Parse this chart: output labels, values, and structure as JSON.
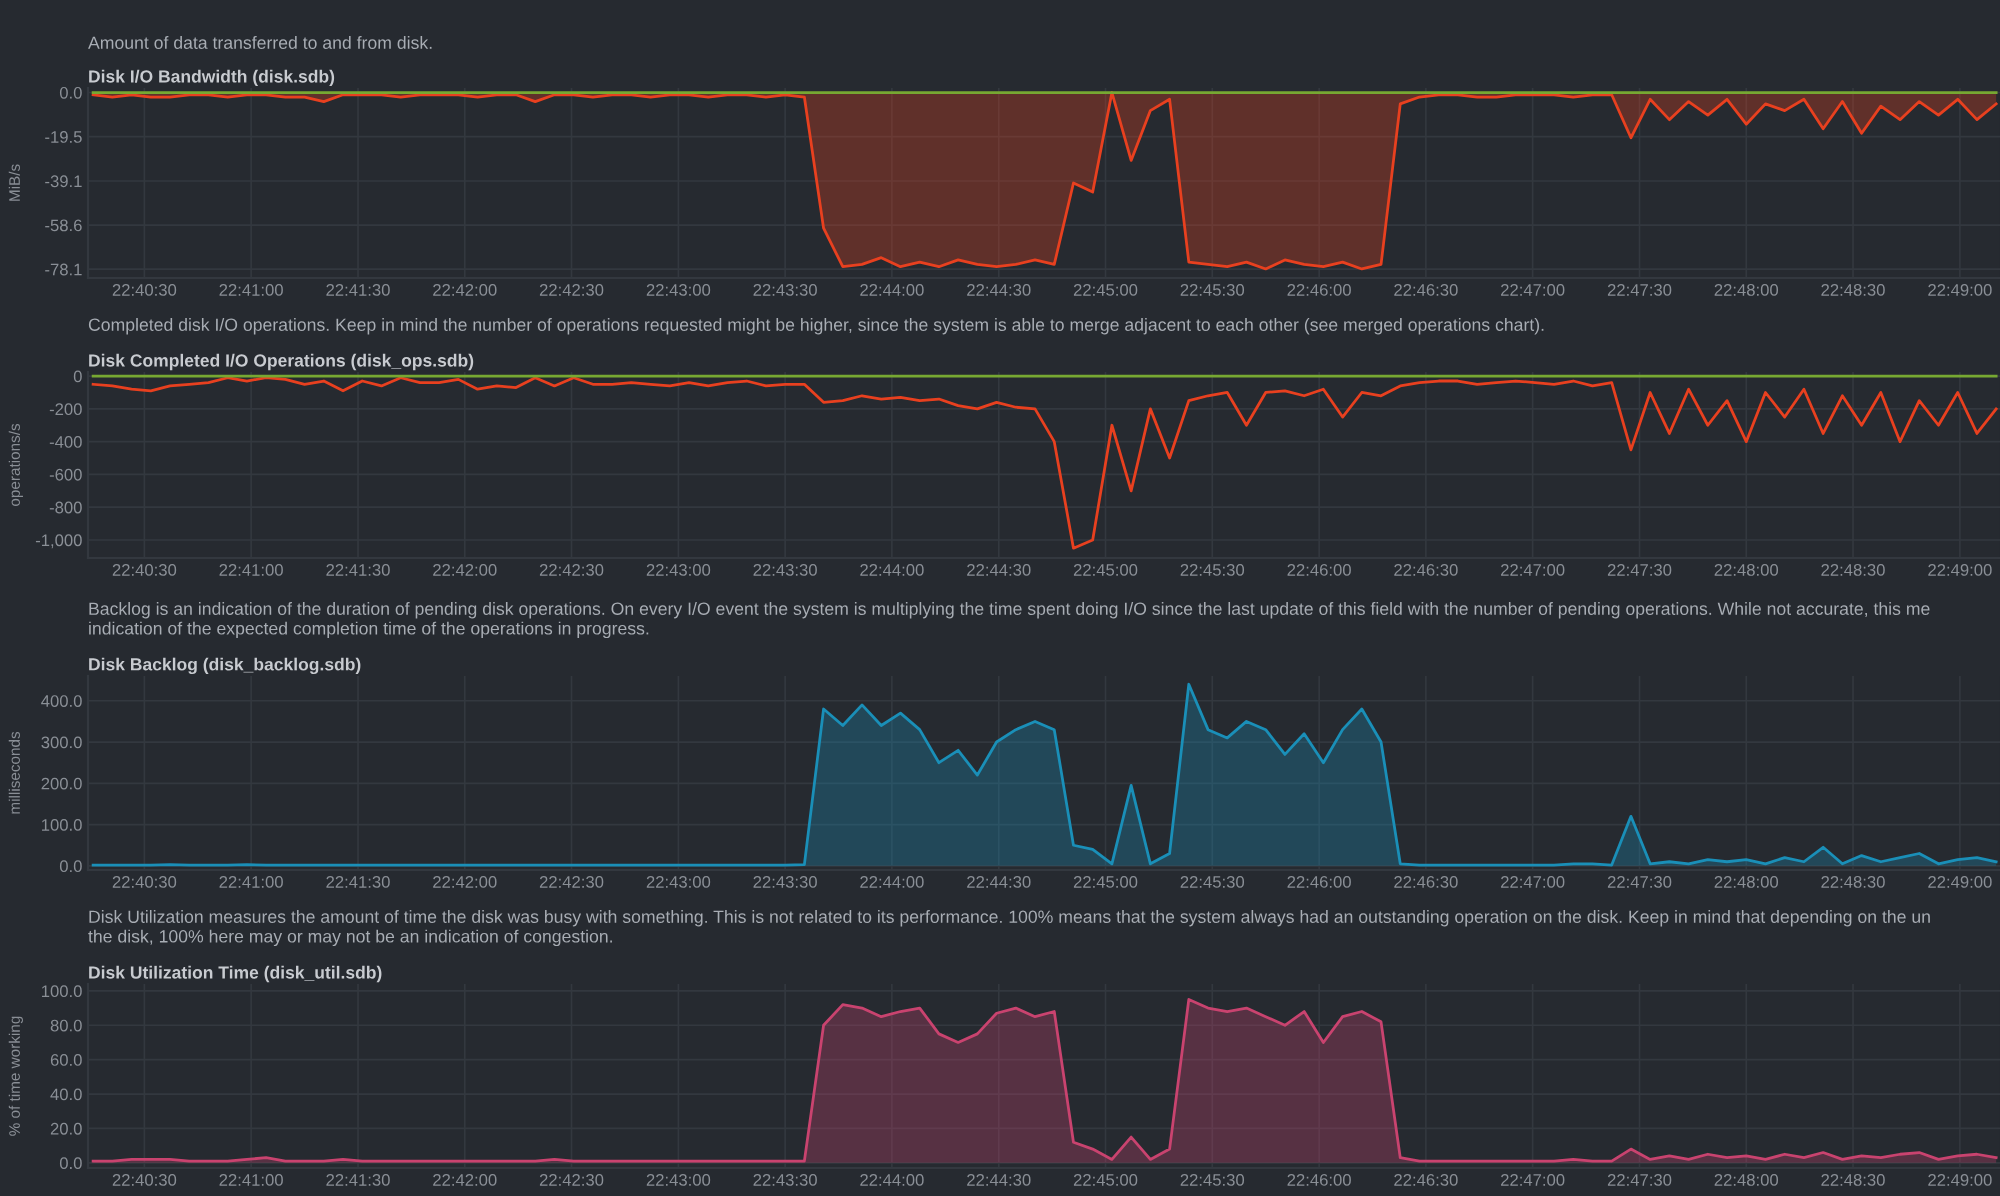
{
  "chart_data": [
    {
      "type": "area",
      "subtitle": "Amount of data transferred to and from disk.",
      "title": "Disk I/O Bandwidth (disk.sdb)",
      "ylabel": "MiB/s",
      "grid": true,
      "x": [
        22.671,
        22.6725,
        22.674,
        22.6755,
        22.677,
        22.6785,
        22.68,
        22.6815,
        22.683,
        22.6845,
        22.686,
        22.6875,
        22.689,
        22.6905,
        22.692,
        22.6935,
        22.695,
        22.6965,
        22.698,
        22.6995,
        22.701,
        22.7025,
        22.704,
        22.7055,
        22.707,
        22.7085,
        22.71,
        22.7115,
        22.713,
        22.7145,
        22.716,
        22.7175,
        22.719,
        22.7205,
        22.722,
        22.7235,
        22.725,
        22.7265,
        22.728,
        22.7295,
        22.731,
        22.7325,
        22.734,
        22.7355,
        22.737,
        22.7385,
        22.74,
        22.7415,
        22.743,
        22.7445,
        22.746,
        22.7475,
        22.749,
        22.7505,
        22.752,
        22.7535,
        22.755,
        22.7565,
        22.758,
        22.7595,
        22.761,
        22.7625,
        22.764,
        22.7655,
        22.767,
        22.7685,
        22.77,
        22.7715,
        22.773,
        22.7745,
        22.776,
        22.7775,
        22.779,
        22.7805,
        22.782,
        22.7835,
        22.785,
        22.7865,
        22.788,
        22.7895,
        22.791,
        22.7925,
        22.794,
        22.7955,
        22.797,
        22.7985,
        22.8,
        22.8015,
        22.803,
        22.8045,
        22.806,
        22.8075,
        22.809,
        22.8105,
        22.812,
        22.8135,
        22.815,
        22.8165,
        22.818,
        22.8195
      ],
      "xlim": [
        22.6706,
        22.8198
      ],
      "xticks": [
        {
          "value": 22.675,
          "label": "22:40:30"
        },
        {
          "value": 22.68333,
          "label": "22:41:00"
        },
        {
          "value": 22.69167,
          "label": "22:41:30"
        },
        {
          "value": 22.7,
          "label": "22:42:00"
        },
        {
          "value": 22.70833,
          "label": "22:42:30"
        },
        {
          "value": 22.71667,
          "label": "22:43:00"
        },
        {
          "value": 22.725,
          "label": "22:43:30"
        },
        {
          "value": 22.73333,
          "label": "22:44:00"
        },
        {
          "value": 22.74167,
          "label": "22:44:30"
        },
        {
          "value": 22.75,
          "label": "22:45:00"
        },
        {
          "value": 22.75833,
          "label": "22:45:30"
        },
        {
          "value": 22.76667,
          "label": "22:46:00"
        },
        {
          "value": 22.775,
          "label": "22:46:30"
        },
        {
          "value": 22.78333,
          "label": "22:47:00"
        },
        {
          "value": 22.79167,
          "label": "22:47:30"
        },
        {
          "value": 22.8,
          "label": "22:48:00"
        },
        {
          "value": 22.80833,
          "label": "22:48:30"
        },
        {
          "value": 22.81667,
          "label": "22:49:00"
        }
      ],
      "ylim": [
        -82,
        2
      ],
      "yticks": [
        {
          "value": 0,
          "label": "0.0"
        },
        {
          "value": -19.5,
          "label": "-19.5"
        },
        {
          "value": -39.1,
          "label": "-39.1"
        },
        {
          "value": -58.6,
          "label": "-58.6"
        },
        {
          "value": -78.1,
          "label": "-78.1"
        }
      ],
      "series": [
        {
          "color": "#e8401f",
          "values": [
            -1,
            -2,
            -1,
            -2,
            -2,
            -1,
            -1,
            -2,
            -1,
            -1,
            -2,
            -2,
            -4,
            -1,
            -1,
            -1,
            -2,
            -1,
            -1,
            -1,
            -2,
            -1,
            -1,
            -4,
            -1,
            -1,
            -2,
            -1,
            -1,
            -2,
            -1,
            -1,
            -2,
            -1,
            -1,
            -2,
            -1,
            -2,
            -60,
            -77,
            -76,
            -73,
            -77,
            -75,
            -77,
            -74,
            -76,
            -77,
            -76,
            -74,
            -76,
            -40,
            -44,
            0,
            -30,
            -8,
            -3,
            -75,
            -76,
            -77,
            -75,
            -78,
            -74,
            -76,
            -77,
            -75,
            -78,
            -76,
            -5,
            -2,
            -1,
            -1,
            -2,
            -2,
            -1,
            -1,
            -1,
            -2,
            -1,
            -1,
            -20,
            -3,
            -12,
            -4,
            -10,
            -3,
            -14,
            -5,
            -8,
            -3,
            -16,
            -4,
            -18,
            -6,
            -12,
            -4,
            -10,
            -3,
            -12,
            -5
          ]
        },
        {
          "type": "line",
          "color": "#77a832",
          "values": [
            0,
            0,
            0,
            0,
            0,
            0,
            0,
            0,
            0,
            0,
            0,
            0,
            0,
            0,
            0,
            0,
            0,
            0,
            0,
            0,
            0,
            0,
            0,
            0,
            0,
            0,
            0,
            0,
            0,
            0,
            0,
            0,
            0,
            0,
            0,
            0,
            0,
            0,
            0,
            0,
            0,
            0,
            0,
            0,
            0,
            0,
            0,
            0,
            0,
            0,
            0,
            0,
            0,
            0,
            0,
            0,
            0,
            0,
            0,
            0,
            0,
            0,
            0,
            0,
            0,
            0,
            0,
            0,
            0,
            0,
            0,
            0,
            0,
            0,
            0,
            0,
            0,
            0,
            0,
            0,
            0,
            0,
            0,
            0,
            0,
            0,
            0,
            0,
            0,
            0,
            0,
            0,
            0,
            0,
            0,
            0,
            0,
            0,
            0,
            0
          ]
        }
      ]
    },
    {
      "type": "line",
      "subtitle": "Completed disk I/O operations. Keep in mind the number of operations requested might be higher, since the system is able to merge adjacent to each other (see merged operations chart).",
      "title": "Disk Completed I/O Operations (disk_ops.sdb)",
      "ylabel": "operations/s",
      "grid": true,
      "x": [
        22.671,
        22.6725,
        22.674,
        22.6755,
        22.677,
        22.6785,
        22.68,
        22.6815,
        22.683,
        22.6845,
        22.686,
        22.6875,
        22.689,
        22.6905,
        22.692,
        22.6935,
        22.695,
        22.6965,
        22.698,
        22.6995,
        22.701,
        22.7025,
        22.704,
        22.7055,
        22.707,
        22.7085,
        22.71,
        22.7115,
        22.713,
        22.7145,
        22.716,
        22.7175,
        22.719,
        22.7205,
        22.722,
        22.7235,
        22.725,
        22.7265,
        22.728,
        22.7295,
        22.731,
        22.7325,
        22.734,
        22.7355,
        22.737,
        22.7385,
        22.74,
        22.7415,
        22.743,
        22.7445,
        22.746,
        22.7475,
        22.749,
        22.7505,
        22.752,
        22.7535,
        22.755,
        22.7565,
        22.758,
        22.7595,
        22.761,
        22.7625,
        22.764,
        22.7655,
        22.767,
        22.7685,
        22.77,
        22.7715,
        22.773,
        22.7745,
        22.776,
        22.7775,
        22.779,
        22.7805,
        22.782,
        22.7835,
        22.785,
        22.7865,
        22.788,
        22.7895,
        22.791,
        22.7925,
        22.794,
        22.7955,
        22.797,
        22.7985,
        22.8,
        22.8015,
        22.803,
        22.8045,
        22.806,
        22.8075,
        22.809,
        22.8105,
        22.812,
        22.8135,
        22.815,
        22.8165,
        22.818,
        22.8195
      ],
      "xlim": [
        22.6706,
        22.8198
      ],
      "xticks": [
        {
          "value": 22.675,
          "label": "22:40:30"
        },
        {
          "value": 22.68333,
          "label": "22:41:00"
        },
        {
          "value": 22.69167,
          "label": "22:41:30"
        },
        {
          "value": 22.7,
          "label": "22:42:00"
        },
        {
          "value": 22.70833,
          "label": "22:42:30"
        },
        {
          "value": 22.71667,
          "label": "22:43:00"
        },
        {
          "value": 22.725,
          "label": "22:43:30"
        },
        {
          "value": 22.73333,
          "label": "22:44:00"
        },
        {
          "value": 22.74167,
          "label": "22:44:30"
        },
        {
          "value": 22.75,
          "label": "22:45:00"
        },
        {
          "value": 22.75833,
          "label": "22:45:30"
        },
        {
          "value": 22.76667,
          "label": "22:46:00"
        },
        {
          "value": 22.775,
          "label": "22:46:30"
        },
        {
          "value": 22.78333,
          "label": "22:47:00"
        },
        {
          "value": 22.79167,
          "label": "22:47:30"
        },
        {
          "value": 22.8,
          "label": "22:48:00"
        },
        {
          "value": 22.80833,
          "label": "22:48:30"
        },
        {
          "value": 22.81667,
          "label": "22:49:00"
        }
      ],
      "ylim": [
        -1110,
        25
      ],
      "yticks": [
        0,
        -200,
        -400,
        -600,
        -800,
        {
          "value": -1000,
          "label": "-1,000"
        }
      ],
      "series": [
        {
          "color": "#e8401f",
          "values": [
            -50,
            -60,
            -80,
            -90,
            -60,
            -50,
            -40,
            -10,
            -30,
            -10,
            -20,
            -50,
            -30,
            -90,
            -30,
            -60,
            -10,
            -40,
            -40,
            -20,
            -80,
            -60,
            -70,
            -10,
            -60,
            -10,
            -50,
            -50,
            -40,
            -50,
            -60,
            -40,
            -60,
            -40,
            -30,
            -60,
            -50,
            -50,
            -160,
            -150,
            -120,
            -140,
            -130,
            -150,
            -140,
            -180,
            -200,
            -160,
            -190,
            -200,
            -400,
            -1050,
            -1000,
            -300,
            -700,
            -200,
            -500,
            -150,
            -120,
            -100,
            -300,
            -100,
            -90,
            -120,
            -80,
            -250,
            -100,
            -120,
            -60,
            -40,
            -30,
            -30,
            -50,
            -40,
            -30,
            -40,
            -50,
            -30,
            -60,
            -40,
            -450,
            -100,
            -350,
            -80,
            -300,
            -150,
            -400,
            -100,
            -250,
            -80,
            -350,
            -120,
            -300,
            -100,
            -400,
            -150,
            -300,
            -100,
            -350,
            -200
          ]
        },
        {
          "type": "line",
          "color": "#77a832",
          "values": [
            0,
            0,
            0,
            0,
            0,
            0,
            0,
            0,
            0,
            0,
            0,
            0,
            0,
            0,
            0,
            0,
            0,
            0,
            0,
            0,
            0,
            0,
            0,
            0,
            0,
            0,
            0,
            0,
            0,
            0,
            0,
            0,
            0,
            0,
            0,
            0,
            0,
            0,
            0,
            0,
            0,
            0,
            0,
            0,
            0,
            0,
            0,
            0,
            0,
            0,
            0,
            0,
            0,
            0,
            0,
            0,
            0,
            0,
            0,
            0,
            0,
            0,
            0,
            0,
            0,
            0,
            0,
            0,
            0,
            0,
            0,
            0,
            0,
            0,
            0,
            0,
            0,
            0,
            0,
            0,
            0,
            0,
            0,
            0,
            0,
            0,
            0,
            0,
            0,
            0,
            0,
            0,
            0,
            0,
            0,
            0,
            0,
            0,
            0,
            0
          ]
        }
      ]
    },
    {
      "type": "area",
      "subtitle": "Backlog is an indication of the duration of pending disk operations. On every I/O event the system is multiplying the time spent doing I/O since the last update of this field with the number of pending operations. While not accurate, this me\nindication of the expected completion time of the operations in progress.",
      "title": "Disk Backlog (disk_backlog.sdb)",
      "ylabel": "milliseconds",
      "grid": true,
      "x": [
        22.671,
        22.6725,
        22.674,
        22.6755,
        22.677,
        22.6785,
        22.68,
        22.6815,
        22.683,
        22.6845,
        22.686,
        22.6875,
        22.689,
        22.6905,
        22.692,
        22.6935,
        22.695,
        22.6965,
        22.698,
        22.6995,
        22.701,
        22.7025,
        22.704,
        22.7055,
        22.707,
        22.7085,
        22.71,
        22.7115,
        22.713,
        22.7145,
        22.716,
        22.7175,
        22.719,
        22.7205,
        22.722,
        22.7235,
        22.725,
        22.7265,
        22.728,
        22.7295,
        22.731,
        22.7325,
        22.734,
        22.7355,
        22.737,
        22.7385,
        22.74,
        22.7415,
        22.743,
        22.7445,
        22.746,
        22.7475,
        22.749,
        22.7505,
        22.752,
        22.7535,
        22.755,
        22.7565,
        22.758,
        22.7595,
        22.761,
        22.7625,
        22.764,
        22.7655,
        22.767,
        22.7685,
        22.77,
        22.7715,
        22.773,
        22.7745,
        22.776,
        22.7775,
        22.779,
        22.7805,
        22.782,
        22.7835,
        22.785,
        22.7865,
        22.788,
        22.7895,
        22.791,
        22.7925,
        22.794,
        22.7955,
        22.797,
        22.7985,
        22.8,
        22.8015,
        22.803,
        22.8045,
        22.806,
        22.8075,
        22.809,
        22.8105,
        22.812,
        22.8135,
        22.815,
        22.8165,
        22.818,
        22.8195
      ],
      "xlim": [
        22.6706,
        22.8198
      ],
      "xticks": [
        {
          "value": 22.675,
          "label": "22:40:30"
        },
        {
          "value": 22.68333,
          "label": "22:41:00"
        },
        {
          "value": 22.69167,
          "label": "22:41:30"
        },
        {
          "value": 22.7,
          "label": "22:42:00"
        },
        {
          "value": 22.70833,
          "label": "22:42:30"
        },
        {
          "value": 22.71667,
          "label": "22:43:00"
        },
        {
          "value": 22.725,
          "label": "22:43:30"
        },
        {
          "value": 22.73333,
          "label": "22:44:00"
        },
        {
          "value": 22.74167,
          "label": "22:44:30"
        },
        {
          "value": 22.75,
          "label": "22:45:00"
        },
        {
          "value": 22.75833,
          "label": "22:45:30"
        },
        {
          "value": 22.76667,
          "label": "22:46:00"
        },
        {
          "value": 22.775,
          "label": "22:46:30"
        },
        {
          "value": 22.78333,
          "label": "22:47:00"
        },
        {
          "value": 22.79167,
          "label": "22:47:30"
        },
        {
          "value": 22.8,
          "label": "22:48:00"
        },
        {
          "value": 22.80833,
          "label": "22:48:30"
        },
        {
          "value": 22.81667,
          "label": "22:49:00"
        }
      ],
      "ylim": [
        -10,
        460
      ],
      "yticks": [
        {
          "value": 0,
          "label": "0.0"
        },
        {
          "value": 100,
          "label": "100.0"
        },
        {
          "value": 200,
          "label": "200.0"
        },
        {
          "value": 300,
          "label": "300.0"
        },
        {
          "value": 400,
          "label": "400.0"
        }
      ],
      "series": [
        {
          "color": "#1a8fb8",
          "values": [
            2,
            2,
            2,
            2,
            3,
            2,
            2,
            2,
            3,
            2,
            2,
            2,
            2,
            2,
            2,
            2,
            2,
            2,
            2,
            2,
            2,
            2,
            2,
            2,
            2,
            2,
            2,
            2,
            2,
            2,
            2,
            2,
            2,
            2,
            2,
            2,
            2,
            3,
            380,
            340,
            390,
            340,
            370,
            330,
            250,
            280,
            220,
            300,
            330,
            350,
            330,
            50,
            40,
            5,
            195,
            5,
            30,
            440,
            330,
            310,
            350,
            330,
            270,
            320,
            250,
            330,
            380,
            300,
            5,
            2,
            2,
            2,
            2,
            2,
            2,
            2,
            2,
            5,
            5,
            2,
            120,
            5,
            10,
            5,
            15,
            10,
            15,
            5,
            20,
            10,
            45,
            5,
            25,
            10,
            20,
            30,
            5,
            15,
            20,
            10
          ]
        }
      ]
    },
    {
      "type": "area",
      "subtitle": "Disk Utilization measures the amount of time the disk was busy with something. This is not related to its performance. 100% means that the system always had an outstanding operation on the disk. Keep in mind that depending on the un\nthe disk, 100% here may or may not be an indication of congestion.",
      "title": "Disk Utilization Time (disk_util.sdb)",
      "ylabel": "% of time working",
      "grid": true,
      "x": [
        22.671,
        22.6725,
        22.674,
        22.6755,
        22.677,
        22.6785,
        22.68,
        22.6815,
        22.683,
        22.6845,
        22.686,
        22.6875,
        22.689,
        22.6905,
        22.692,
        22.6935,
        22.695,
        22.6965,
        22.698,
        22.6995,
        22.701,
        22.7025,
        22.704,
        22.7055,
        22.707,
        22.7085,
        22.71,
        22.7115,
        22.713,
        22.7145,
        22.716,
        22.7175,
        22.719,
        22.7205,
        22.722,
        22.7235,
        22.725,
        22.7265,
        22.728,
        22.7295,
        22.731,
        22.7325,
        22.734,
        22.7355,
        22.737,
        22.7385,
        22.74,
        22.7415,
        22.743,
        22.7445,
        22.746,
        22.7475,
        22.749,
        22.7505,
        22.752,
        22.7535,
        22.755,
        22.7565,
        22.758,
        22.7595,
        22.761,
        22.7625,
        22.764,
        22.7655,
        22.767,
        22.7685,
        22.77,
        22.7715,
        22.773,
        22.7745,
        22.776,
        22.7775,
        22.779,
        22.7805,
        22.782,
        22.7835,
        22.785,
        22.7865,
        22.788,
        22.7895,
        22.791,
        22.7925,
        22.794,
        22.7955,
        22.797,
        22.7985,
        22.8,
        22.8015,
        22.803,
        22.8045,
        22.806,
        22.8075,
        22.809,
        22.8105,
        22.812,
        22.8135,
        22.815,
        22.8165,
        22.818,
        22.8195
      ],
      "xlim": [
        22.6706,
        22.8198
      ],
      "xticks": [
        {
          "value": 22.675,
          "label": "22:40:30"
        },
        {
          "value": 22.68333,
          "label": "22:41:00"
        },
        {
          "value": 22.69167,
          "label": "22:41:30"
        },
        {
          "value": 22.7,
          "label": "22:42:00"
        },
        {
          "value": 22.70833,
          "label": "22:42:30"
        },
        {
          "value": 22.71667,
          "label": "22:43:00"
        },
        {
          "value": 22.725,
          "label": "22:43:30"
        },
        {
          "value": 22.73333,
          "label": "22:44:00"
        },
        {
          "value": 22.74167,
          "label": "22:44:30"
        },
        {
          "value": 22.75,
          "label": "22:45:00"
        },
        {
          "value": 22.75833,
          "label": "22:45:30"
        },
        {
          "value": 22.76667,
          "label": "22:46:00"
        },
        {
          "value": 22.775,
          "label": "22:46:30"
        },
        {
          "value": 22.78333,
          "label": "22:47:00"
        },
        {
          "value": 22.79167,
          "label": "22:47:30"
        },
        {
          "value": 22.8,
          "label": "22:48:00"
        },
        {
          "value": 22.80833,
          "label": "22:48:30"
        },
        {
          "value": 22.81667,
          "label": "22:49:00"
        }
      ],
      "ylim": [
        -3,
        104
      ],
      "yticks": [
        {
          "value": 0,
          "label": "0.0"
        },
        {
          "value": 20,
          "label": "20.0"
        },
        {
          "value": 40,
          "label": "40.0"
        },
        {
          "value": 60,
          "label": "60.0"
        },
        {
          "value": 80,
          "label": "80.0"
        },
        {
          "value": 100,
          "label": "100.0"
        }
      ],
      "series": [
        {
          "color": "#c9436f",
          "values": [
            1,
            1,
            2,
            2,
            2,
            1,
            1,
            1,
            2,
            3,
            1,
            1,
            1,
            2,
            1,
            1,
            1,
            1,
            1,
            1,
            1,
            1,
            1,
            1,
            2,
            1,
            1,
            1,
            1,
            1,
            1,
            1,
            1,
            1,
            1,
            1,
            1,
            1,
            80,
            92,
            90,
            85,
            88,
            90,
            75,
            70,
            75,
            87,
            90,
            85,
            88,
            12,
            8,
            2,
            15,
            2,
            8,
            95,
            90,
            88,
            90,
            85,
            80,
            88,
            70,
            85,
            88,
            82,
            3,
            1,
            1,
            1,
            1,
            1,
            1,
            1,
            1,
            2,
            1,
            1,
            8,
            2,
            4,
            2,
            5,
            3,
            4,
            2,
            5,
            3,
            6,
            2,
            4,
            3,
            5,
            6,
            2,
            4,
            5,
            3
          ]
        }
      ]
    }
  ]
}
